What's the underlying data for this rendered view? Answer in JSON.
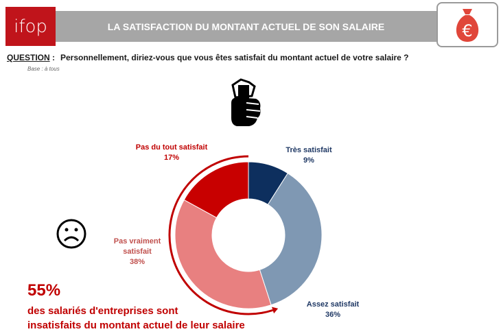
{
  "header": {
    "logo": "ifop",
    "title": "LA SATISFACTION DU MONTANT ACTUEL DE SON SALAIRE",
    "icon": "euro-money-bag-icon"
  },
  "question": {
    "label": "QUESTION",
    "separator": " :",
    "text": "Personnellement, diriez-vous que vous êtes satisfait du montant actuel de votre salaire ?",
    "base": "Base : à tous"
  },
  "chart_data": {
    "type": "pie",
    "donut": true,
    "categories": [
      "Très satisfait",
      "Assez satisfait",
      "Pas vraiment satisfait",
      "Pas du tout satisfait"
    ],
    "values": [
      9,
      36,
      38,
      17
    ],
    "labels": [
      "9%",
      "36%",
      "38%",
      "17%"
    ],
    "colors": [
      "#0d2f5e",
      "#7f98b3",
      "#e88080",
      "#c80000"
    ],
    "label_colors": [
      "#1f3864",
      "#1f3864",
      "#c0504d",
      "#c00000"
    ]
  },
  "highlight": {
    "value": "55%",
    "text_line1": "des salariés d'entreprises sont",
    "text_line2": "insatisfaits du montant actuel de leur salaire",
    "color": "#c00000"
  },
  "icons": {
    "thumb": "thumbs-down-hand-icon",
    "face": "sad-face-icon"
  }
}
